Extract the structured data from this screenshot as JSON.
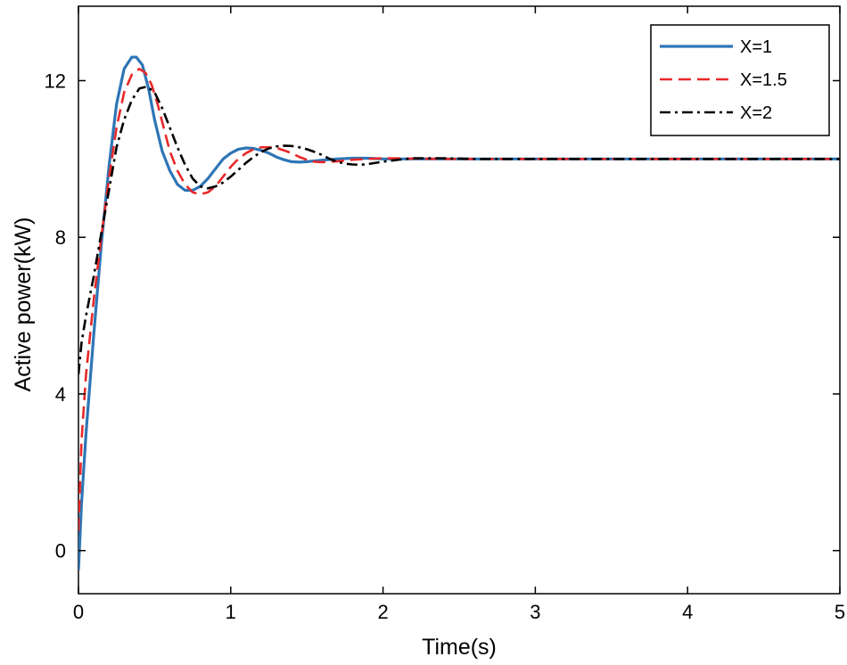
{
  "chart_data": {
    "type": "line",
    "title": "",
    "xlabel": "Time(s)",
    "ylabel": "Active power(kW)",
    "xlim": [
      0,
      5
    ],
    "ylim": [
      -1.1,
      13.9
    ],
    "xticks": [
      0,
      1,
      2,
      3,
      4,
      5
    ],
    "yticks": [
      0,
      4,
      8,
      12
    ],
    "xtick_labels": [
      "0",
      "1",
      "2",
      "3",
      "4",
      "5"
    ],
    "ytick_labels": [
      "0",
      "4",
      "8",
      "12"
    ],
    "grid": false,
    "legend_position": "top-right",
    "series": [
      {
        "name": "X=1",
        "legend_label": "X=1",
        "color": "#2e75b6",
        "style": "solid",
        "x": [
          0,
          0.02,
          0.05,
          0.1,
          0.15,
          0.2,
          0.25,
          0.3,
          0.35,
          0.38,
          0.42,
          0.46,
          0.5,
          0.55,
          0.6,
          0.65,
          0.7,
          0.75,
          0.8,
          0.85,
          0.9,
          0.95,
          1.0,
          1.05,
          1.1,
          1.15,
          1.2,
          1.25,
          1.3,
          1.35,
          1.4,
          1.45,
          1.5,
          1.6,
          1.7,
          1.8,
          1.9,
          2.0,
          2.2,
          2.4,
          2.6,
          3.0,
          3.5,
          4.0,
          4.5,
          5.0
        ],
        "y": [
          -0.5,
          1.2,
          3.0,
          5.5,
          7.8,
          9.8,
          11.4,
          12.3,
          12.6,
          12.6,
          12.4,
          11.8,
          11.0,
          10.2,
          9.7,
          9.35,
          9.2,
          9.2,
          9.3,
          9.5,
          9.75,
          10.0,
          10.15,
          10.25,
          10.28,
          10.27,
          10.22,
          10.15,
          10.05,
          9.98,
          9.93,
          9.92,
          9.93,
          9.97,
          10.0,
          10.02,
          10.02,
          10.0,
          10.0,
          10.0,
          10.0,
          10.0,
          10.0,
          10.0,
          10.0,
          10.0
        ]
      },
      {
        "name": "X=1.5",
        "legend_label": "X=1.5",
        "color": "#e8282a",
        "style": "dashed",
        "x": [
          0,
          0.02,
          0.05,
          0.1,
          0.15,
          0.2,
          0.25,
          0.3,
          0.35,
          0.4,
          0.44,
          0.48,
          0.52,
          0.56,
          0.6,
          0.65,
          0.7,
          0.75,
          0.8,
          0.85,
          0.9,
          0.95,
          1.0,
          1.05,
          1.1,
          1.15,
          1.2,
          1.25,
          1.3,
          1.35,
          1.4,
          1.45,
          1.5,
          1.55,
          1.6,
          1.7,
          1.8,
          1.9,
          2.0,
          2.2,
          2.4,
          2.6,
          3.0,
          3.5,
          4.0,
          4.5,
          5.0
        ],
        "y": [
          0.5,
          2.8,
          4.5,
          6.4,
          8.0,
          9.5,
          10.8,
          11.7,
          12.15,
          12.3,
          12.2,
          11.9,
          11.4,
          10.8,
          10.2,
          9.7,
          9.35,
          9.15,
          9.1,
          9.15,
          9.3,
          9.55,
          9.8,
          10.0,
          10.15,
          10.25,
          10.3,
          10.3,
          10.28,
          10.22,
          10.15,
          10.05,
          9.98,
          9.93,
          9.92,
          9.94,
          9.98,
          10.0,
          10.02,
          10.01,
          10.0,
          10.0,
          10.0,
          10.0,
          10.0,
          10.0,
          10.0
        ]
      },
      {
        "name": "X=2",
        "legend_label": "X=2",
        "color": "#000000",
        "style": "dashdot",
        "x": [
          0,
          0.02,
          0.05,
          0.1,
          0.15,
          0.2,
          0.25,
          0.3,
          0.35,
          0.4,
          0.45,
          0.5,
          0.55,
          0.6,
          0.65,
          0.7,
          0.75,
          0.8,
          0.85,
          0.9,
          0.95,
          1.0,
          1.05,
          1.1,
          1.15,
          1.2,
          1.25,
          1.3,
          1.35,
          1.4,
          1.45,
          1.5,
          1.55,
          1.6,
          1.65,
          1.7,
          1.75,
          1.8,
          1.85,
          1.9,
          2.0,
          2.1,
          2.2,
          2.4,
          2.6,
          3.0,
          3.5,
          4.0,
          4.5,
          5.0
        ],
        "y": [
          4.5,
          5.3,
          6.0,
          7.0,
          8.1,
          9.2,
          10.3,
          11.0,
          11.5,
          11.8,
          11.85,
          11.7,
          11.3,
          10.8,
          10.3,
          9.85,
          9.5,
          9.3,
          9.25,
          9.3,
          9.4,
          9.55,
          9.72,
          9.9,
          10.05,
          10.18,
          10.27,
          10.32,
          10.34,
          10.33,
          10.3,
          10.25,
          10.18,
          10.1,
          10.0,
          9.93,
          9.88,
          9.86,
          9.85,
          9.87,
          9.93,
          9.98,
          10.02,
          10.02,
          10.0,
          10.0,
          10.0,
          10.0,
          10.0,
          10.0
        ]
      }
    ]
  }
}
